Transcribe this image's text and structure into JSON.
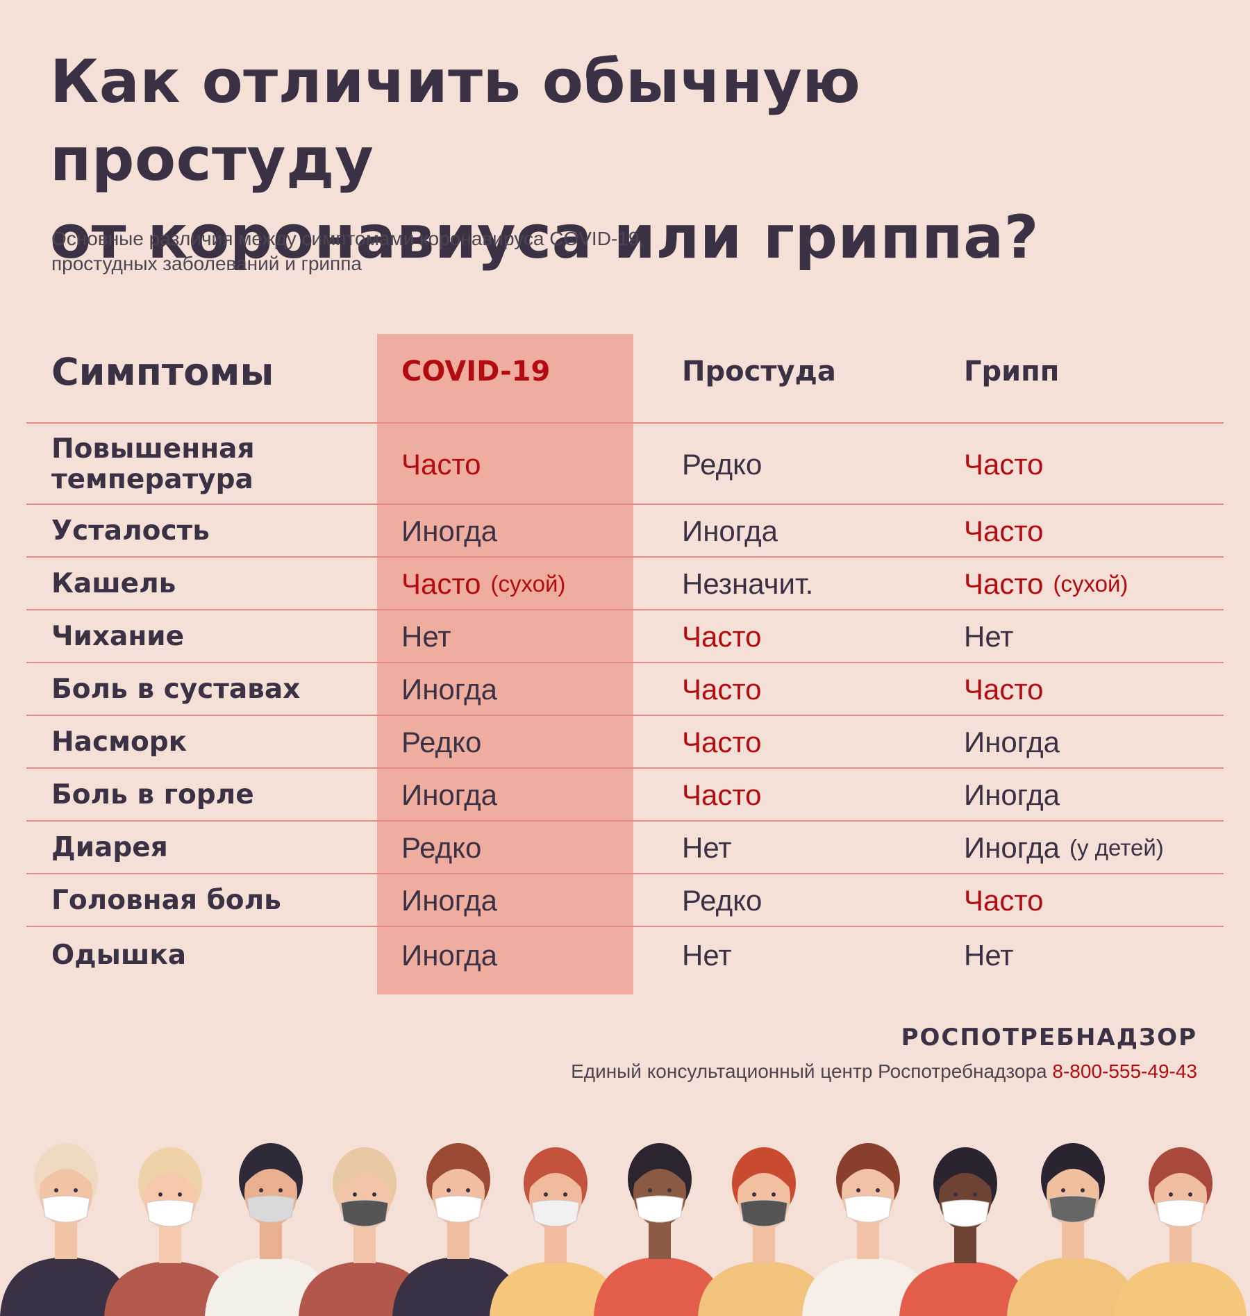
{
  "title_line1": "Как отличить обычную простуду",
  "title_line2": "от коронавиуса или гриппа?",
  "subtitle_line1": "Основные различия между симптомами коронавируса COVID-19,",
  "subtitle_line2": "простудных заболеваний и гриппа",
  "table": {
    "headers": [
      "Симптомы",
      "COVID-19",
      "Простуда",
      "Грипп"
    ],
    "rows": [
      {
        "symptom": "Повышенная температура",
        "covid": "Часто",
        "covid_note": "",
        "cold": "Редко",
        "cold_note": "",
        "flu": "Часто",
        "flu_note": ""
      },
      {
        "symptom": "Усталость",
        "covid": "Иногда",
        "covid_note": "",
        "cold": "Иногда",
        "cold_note": "",
        "flu": "Часто",
        "flu_note": ""
      },
      {
        "symptom": "Кашель",
        "covid": "Часто",
        "covid_note": "(сухой)",
        "cold": "Незначит.",
        "cold_note": "",
        "flu": "Часто",
        "flu_note": "(сухой)"
      },
      {
        "symptom": "Чихание",
        "covid": "Нет",
        "covid_note": "",
        "cold": "Часто",
        "cold_note": "",
        "flu": "Нет",
        "flu_note": ""
      },
      {
        "symptom": "Боль в суставах",
        "covid": "Иногда",
        "covid_note": "",
        "cold": "Часто",
        "cold_note": "",
        "flu": "Часто",
        "flu_note": ""
      },
      {
        "symptom": "Насморк",
        "covid": "Редко",
        "covid_note": "",
        "cold": "Часто",
        "cold_note": "",
        "flu": "Иногда",
        "flu_note": ""
      },
      {
        "symptom": "Боль в горле",
        "covid": "Иногда",
        "covid_note": "",
        "cold": "Часто",
        "cold_note": "",
        "flu": "Иногда",
        "flu_note": ""
      },
      {
        "symptom": "Диарея",
        "covid": "Редко",
        "covid_note": "",
        "cold": "Нет",
        "cold_note": "",
        "flu": "Иногда",
        "flu_note": "(у детей)"
      },
      {
        "symptom": "Головная боль",
        "covid": "Иногда",
        "covid_note": "",
        "cold": "Редко",
        "cold_note": "",
        "flu": "Часто",
        "flu_note": ""
      },
      {
        "symptom": "Одышка",
        "covid": "Иногда",
        "covid_note": "",
        "cold": "Нет",
        "cold_note": "",
        "flu": "Нет",
        "flu_note": ""
      }
    ]
  },
  "highlight_value": "Часто",
  "footer": {
    "org": "РОСПОТРЕБНАДЗОР",
    "contact_text": "Единый консультационный центр Роспотребнадзора",
    "phone": "8-800-555-49-43"
  },
  "colors": {
    "background": "#f5e0d7",
    "covid_band": "#efada0",
    "accent_red": "#b20c10",
    "text_dark": "#3b3145",
    "divider": "#e68c84"
  },
  "illustration": "row of twelve people wearing face masks"
}
